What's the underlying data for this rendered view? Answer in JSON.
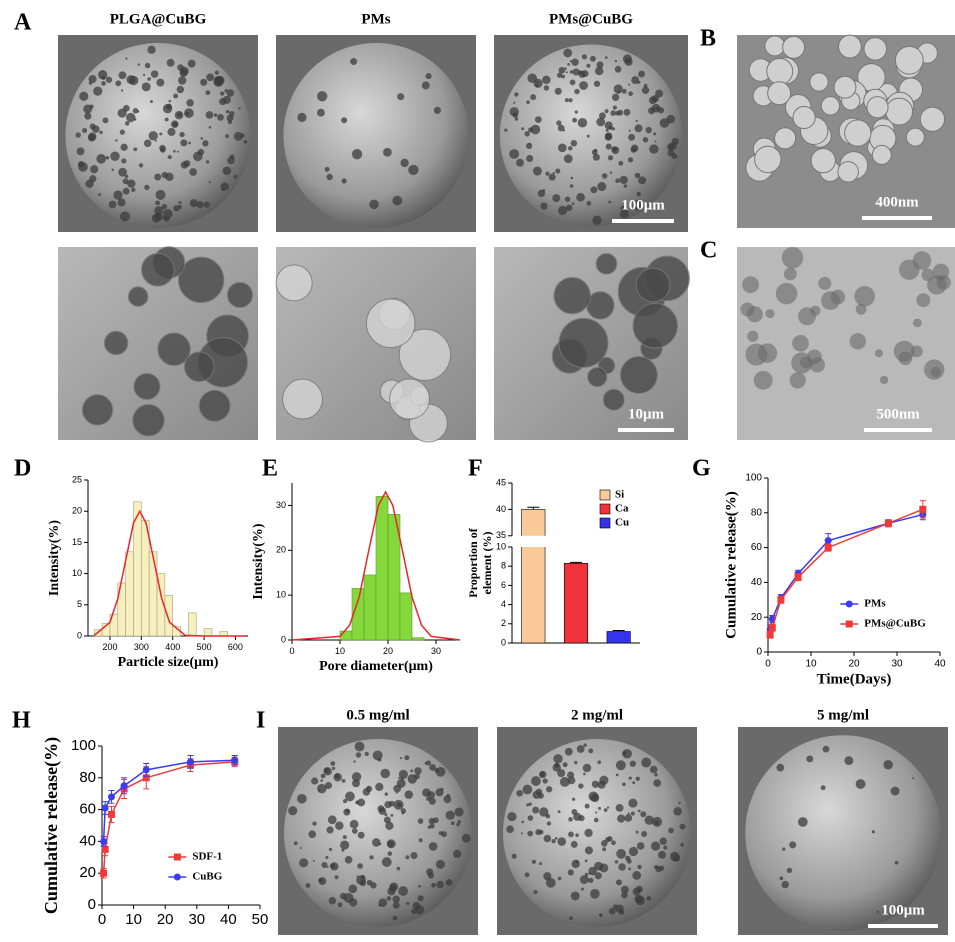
{
  "figure": {
    "letters": [
      "A",
      "B",
      "C",
      "D",
      "E",
      "F",
      "G",
      "H",
      "I"
    ],
    "a_titles": [
      "PLGA@CuBG",
      "PMs",
      "PMs@CuBG"
    ],
    "i_titles": [
      "0.5 mg/ml",
      "2 mg/ml",
      "5 mg/ml"
    ],
    "scale_bars": [
      "100μm",
      "400nm",
      "10μm",
      "500nm",
      "100μm"
    ]
  },
  "chart_data": [
    {
      "type": "histogram",
      "xlabel": "Particle size(μm)",
      "ylabel": "Intensity(%)",
      "bins": [
        150,
        175,
        200,
        225,
        250,
        275,
        300,
        325,
        350,
        375,
        400,
        425,
        450,
        475,
        500,
        525,
        550,
        575,
        600
      ],
      "counts": [
        1,
        2,
        3.5,
        8.5,
        13.5,
        21.5,
        18.5,
        13.5,
        10,
        6.5,
        1.5,
        0,
        3.7,
        0,
        1.2,
        0,
        0.7,
        0
      ],
      "color": "#f5f0bd",
      "edgecolor": "#a89f78",
      "fit": {
        "color": "#e8262c",
        "x": [
          150,
          200,
          225,
          250,
          275,
          295,
          315,
          340,
          365,
          390,
          440,
          500,
          630
        ],
        "values": [
          0.1,
          2.2,
          6,
          12.1,
          18.1,
          20,
          18.1,
          12.1,
          6,
          2.2,
          0.1,
          0,
          0
        ]
      },
      "xlim": [
        130,
        640
      ],
      "xticks": [
        200,
        300,
        400,
        500,
        600
      ],
      "ylim": [
        0,
        25
      ],
      "yticks": [
        0,
        5,
        10,
        15,
        20,
        25
      ]
    },
    {
      "type": "histogram",
      "xlabel": "Pore diameter(μm)",
      "ylabel": "Intensity(%)",
      "bins": [
        10,
        12.5,
        15,
        17.5,
        20,
        22.5,
        25,
        27.5
      ],
      "counts": [
        2,
        11.5,
        14.5,
        32,
        28,
        10.5,
        0.5
      ],
      "color": "#84d83c",
      "edgecolor": "#5b9a22",
      "fit": {
        "color": "#e8262c",
        "x": [
          0,
          10,
          12,
          14,
          16,
          18,
          19.5,
          21,
          23,
          25,
          27,
          29,
          35
        ],
        "values": [
          0,
          0.8,
          3.3,
          9.6,
          20,
          30,
          33,
          30,
          20,
          9.6,
          3.3,
          0.8,
          0
        ]
      },
      "xlim": [
        0,
        35
      ],
      "xticks": [
        0,
        10,
        20,
        30
      ],
      "ylim": [
        0,
        35
      ],
      "yticks": [
        0,
        10,
        20,
        30
      ]
    },
    {
      "type": "bar",
      "ylabel": [
        "Proportion of",
        "element (%)"
      ],
      "categories": [
        "Si",
        "Ca",
        "Cu"
      ],
      "values": [
        40,
        8.3,
        1.2
      ],
      "errors": [
        0.4,
        0.1,
        0.1
      ],
      "colors": [
        "#f9c99a",
        "#f0333a",
        "#3434ee"
      ],
      "ylim": [
        0,
        45
      ],
      "ybreak": [
        10,
        35
      ],
      "yticks": [
        0,
        2,
        4,
        6,
        8,
        10,
        35,
        40,
        45
      ],
      "legend": "upper right"
    },
    {
      "type": "line",
      "xlabel": "Time(Days)",
      "ylabel": "Cumulative release(%)",
      "xlim": [
        0,
        40
      ],
      "xticks": [
        0,
        10,
        20,
        30,
        40
      ],
      "ylim": [
        0,
        100
      ],
      "yticks": [
        0,
        20,
        40,
        60,
        80,
        100
      ],
      "legend": "lower right",
      "series": [
        {
          "name": "PMs",
          "color": "#3b3bf0",
          "marker": "circle",
          "x": [
            0.5,
            1,
            3,
            7,
            14,
            28,
            36
          ],
          "values": [
            13,
            19,
            31,
            45,
            64,
            74,
            79
          ],
          "errors": [
            2,
            2,
            2,
            2,
            4,
            2,
            3
          ]
        },
        {
          "name": "PMs@CuBG",
          "color": "#f03a3a",
          "marker": "square",
          "x": [
            0.5,
            1,
            3,
            7,
            14,
            28,
            36
          ],
          "values": [
            10,
            14,
            30,
            43,
            60,
            74,
            82
          ],
          "errors": [
            2,
            2,
            2,
            2,
            2,
            2,
            5
          ]
        }
      ]
    },
    {
      "type": "line",
      "ylabel": "Cumulative release(%)",
      "xlim": [
        0,
        50
      ],
      "xticks": [
        0,
        10,
        20,
        30,
        40,
        50
      ],
      "ylim": [
        0,
        100
      ],
      "yticks": [
        0,
        20,
        40,
        60,
        80,
        100
      ],
      "legend": "lower right",
      "series": [
        {
          "name": "SDF-1",
          "color": "#f03a3a",
          "marker": "square",
          "x": [
            0.5,
            1,
            3,
            7,
            14,
            28,
            42
          ],
          "values": [
            20,
            35,
            57,
            73,
            80,
            88,
            90
          ],
          "errors": [
            3,
            4,
            5,
            6,
            7,
            4,
            3
          ]
        },
        {
          "name": "CuBG",
          "color": "#3b3bf0",
          "marker": "circle",
          "x": [
            0.5,
            1,
            3,
            7,
            14,
            28,
            42
          ],
          "values": [
            40,
            61,
            68,
            75,
            85,
            90,
            91
          ],
          "errors": [
            3,
            4,
            4,
            5,
            4,
            4,
            3
          ]
        }
      ]
    }
  ]
}
